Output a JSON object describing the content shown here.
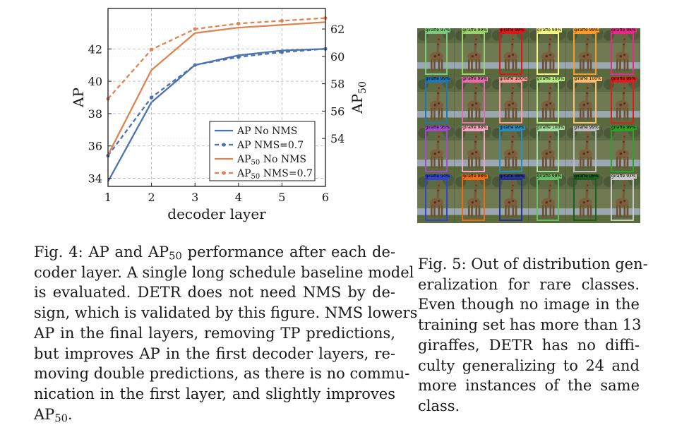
{
  "chart_data": {
    "type": "line",
    "xlabel": "decoder layer",
    "ylabel_left": "AP",
    "ylabel_right": "AP",
    "ylabel_right_sub": "50",
    "x": [
      1,
      2,
      3,
      4,
      5,
      6
    ],
    "x_ticks": [
      1,
      2,
      3,
      4,
      5,
      6
    ],
    "xlim": [
      1,
      6
    ],
    "ylim_left": [
      33.5,
      44.5
    ],
    "y_ticks_left": [
      34,
      36,
      38,
      40,
      42
    ],
    "ylim_right": [
      50.5,
      63.5
    ],
    "y_ticks_right": [
      54,
      56,
      58,
      60,
      62
    ],
    "grid": true,
    "legend_position": "lower-right",
    "series": [
      {
        "name": "AP No NMS",
        "label_main": "AP No NMS",
        "label_sub": "",
        "label_tail": "",
        "axis": "left",
        "color": "#4c72b0",
        "dashed": false,
        "markers": false,
        "values": [
          33.8,
          38.7,
          41.0,
          41.6,
          41.9,
          42.0
        ]
      },
      {
        "name": "AP NMS=0.7",
        "label_main": "AP NMS=0.7",
        "label_sub": "",
        "label_tail": "",
        "axis": "left",
        "color": "#4c72b0",
        "dashed": true,
        "markers": true,
        "values": [
          35.4,
          39.0,
          41.0,
          41.5,
          41.8,
          42.0
        ]
      },
      {
        "name": "AP50 No NMS",
        "label_main": "AP",
        "label_sub": "50",
        "label_tail": " No NMS",
        "axis": "right",
        "color": "#dd8452",
        "dashed": false,
        "markers": false,
        "values": [
          52.8,
          59.0,
          61.7,
          62.1,
          62.3,
          62.5
        ]
      },
      {
        "name": "AP50 NMS=0.7",
        "label_main": "AP",
        "label_sub": "50",
        "label_tail": " NMS=0.7",
        "axis": "right",
        "color": "#dd8452",
        "dashed": true,
        "markers": true,
        "values": [
          56.9,
          60.5,
          62.0,
          62.4,
          62.6,
          62.8
        ]
      }
    ]
  },
  "giraffe_grid": {
    "rows": [
      [
        {
          "label": "giraffe 97%",
          "color": "#7fc97f"
        },
        {
          "label": "giraffe 99%",
          "color": "#9bd36c"
        },
        {
          "label": "giraffe 99%",
          "color": "#d7191c"
        },
        {
          "label": "giraffe 99%",
          "color": "#f7f784"
        },
        {
          "label": "giraffe 99%",
          "color": "#fb9a29"
        },
        {
          "label": "giraffe 98%",
          "color": "#e7298a"
        }
      ],
      [
        {
          "label": "giraffe 99%",
          "color": "#1f78b4"
        },
        {
          "label": "giraffe 99%",
          "color": "#e76bb0"
        },
        {
          "label": "giraffe 100%",
          "color": "#fb9a99"
        },
        {
          "label": "giraffe 100%",
          "color": "#b8e986"
        },
        {
          "label": "giraffe 100%",
          "color": "#fdbf6f"
        },
        {
          "label": "giraffe 99%",
          "color": "#e31a1c"
        }
      ],
      [
        {
          "label": "giraffe 95%",
          "color": "#9e4fc8"
        },
        {
          "label": "giraffe 98%",
          "color": "#f4a6c1"
        },
        {
          "label": "giraffe 99%",
          "color": "#2b8cbe"
        },
        {
          "label": "giraffe 100%",
          "color": "#a6dba0"
        },
        {
          "label": "giraffe 99%",
          "color": "#bdbdbd"
        },
        {
          "label": "giraffe 99%",
          "color": "#33a02c"
        }
      ],
      [
        {
          "label": "giraffe 94%",
          "color": "#3344cc"
        },
        {
          "label": "giraffe 98%",
          "color": "#f16913"
        },
        {
          "label": "giraffe 98%",
          "color": "#253494"
        },
        {
          "label": "giraffe 98%",
          "color": "#66bd63"
        },
        {
          "label": "giraffe 96%",
          "color": "#1b5e20"
        },
        {
          "label": "giraffe 93%",
          "color": "#c9c9c9"
        }
      ]
    ]
  },
  "fig4_caption": {
    "lines": [
      {
        "main": "Fig. 4: AP and AP",
        "sub": "50",
        "tail": " performance after each de-"
      },
      {
        "main": "coder layer. A single long schedule baseline model",
        "sub": "",
        "tail": ""
      },
      {
        "main": "is evaluated. DETR does not need NMS by de-",
        "sub": "",
        "tail": ""
      },
      {
        "main": "sign, which is validated by this figure. NMS lowers",
        "sub": "",
        "tail": ""
      },
      {
        "main": "AP in the final layers, removing TP predictions,",
        "sub": "",
        "tail": ""
      },
      {
        "main": "but improves AP in the first decoder layers, re-",
        "sub": "",
        "tail": ""
      },
      {
        "main": "moving double predictions, as there is no commu-",
        "sub": "",
        "tail": ""
      },
      {
        "main": "nication in the first layer, and slightly improves",
        "sub": "",
        "tail": ""
      },
      {
        "main": "AP",
        "sub": "50",
        "tail": "."
      }
    ]
  },
  "fig5_caption": {
    "lines": [
      {
        "main": "Fig. 5: Out of distribution gen-",
        "sub": "",
        "tail": ""
      },
      {
        "main": "eralization for rare classes.",
        "sub": "",
        "tail": ""
      },
      {
        "main": "Even though no image in the",
        "sub": "",
        "tail": ""
      },
      {
        "main": "training set has more than 13",
        "sub": "",
        "tail": ""
      },
      {
        "main": "giraffes, DETR has no diffi-",
        "sub": "",
        "tail": ""
      },
      {
        "main": "culty generalizing to 24 and",
        "sub": "",
        "tail": ""
      },
      {
        "main": "more instances of the same",
        "sub": "",
        "tail": ""
      },
      {
        "main": "class.",
        "sub": "",
        "tail": ""
      }
    ]
  }
}
